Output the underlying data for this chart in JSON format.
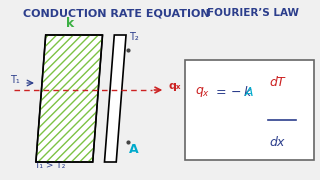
{
  "title": "CONDUCTION RATE EQUATION",
  "title_color": "#2c3e8c",
  "bg_color": "#f0f0f0",
  "fouriers_law_title": "FOURIER’S LAW",
  "fouriers_law_color": "#2c3e8c",
  "k_label": "k",
  "k_color": "#3cb044",
  "T1_label": "T₁",
  "T2_label": "T₂",
  "T_color": "#2c3e8c",
  "qx_label": "qₓ",
  "qx_color": "#cc2222",
  "A_label": "A",
  "A_color": "#00aacc",
  "condition_label": "T₁ > T₂",
  "condition_color": "#2c3e8c",
  "eq_qx_color": "#cc2222",
  "eq_k_color": "#2c3e8c",
  "eq_A_color": "#00aacc",
  "eq_dT_color": "#cc2222",
  "eq_dx_color": "#2c3e8c",
  "hatch_color": "#7dc244",
  "arrow_color": "#cc2222",
  "box_color": "#666666"
}
